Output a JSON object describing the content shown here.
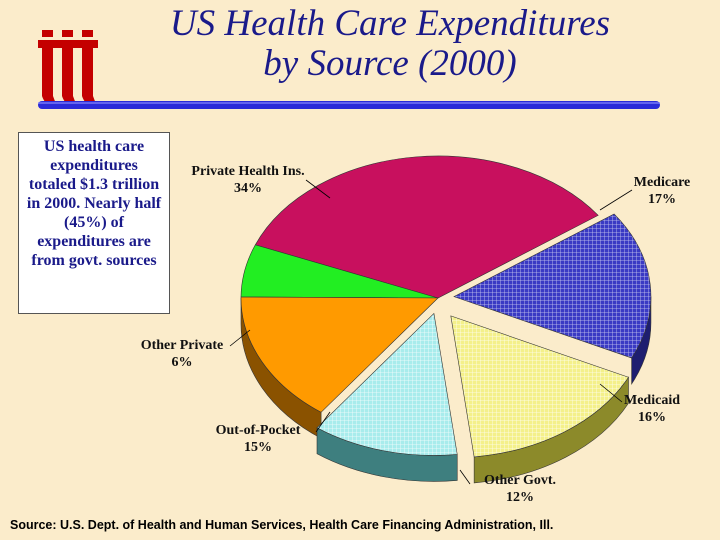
{
  "title": {
    "line1": "US Health Care Expenditures",
    "line2": "by Source (2000)"
  },
  "summary_text": "US health care expenditures totaled $1.3 trillion in 2000. Nearly half (45%) of expenditures are from govt. sources",
  "source_note": "Source: U.S. Dept. of Health and Human Services, Health Care Financing Administration, Ill.",
  "colors": {
    "title": "#1a1a8a",
    "rule": "#2b2bd8",
    "logo": "#c40000",
    "background": "#fbeccb"
  },
  "chart_data": {
    "type": "pie",
    "title": "US Health Care Expenditures by Source (2000)",
    "unit": "percent",
    "slices": [
      {
        "name": "Private Health Ins.",
        "value": 34,
        "value_label": "34%",
        "color": "#c8105e",
        "side": "#7a0638"
      },
      {
        "name": "Medicare",
        "value": 17,
        "value_label": "17%",
        "color": "#3a3ac4",
        "side": "#1e1e70",
        "pattern": "grid"
      },
      {
        "name": "Medicaid",
        "value": 16,
        "value_label": "16%",
        "color": "#f4f08a",
        "side": "#8c8a2a",
        "pattern": "grid"
      },
      {
        "name": "Other Govt.",
        "value": 12,
        "value_label": "12%",
        "color": "#a8ecec",
        "side": "#3e7f7f",
        "pattern": "grid"
      },
      {
        "name": "Out-of-Pocket",
        "value": 15,
        "value_label": "15%",
        "color": "#ff9a00",
        "side": "#8a5200"
      },
      {
        "name": "Other Private",
        "value": 6,
        "value_label": "6%",
        "color": "#22ee22",
        "side": "#108a10"
      }
    ]
  }
}
